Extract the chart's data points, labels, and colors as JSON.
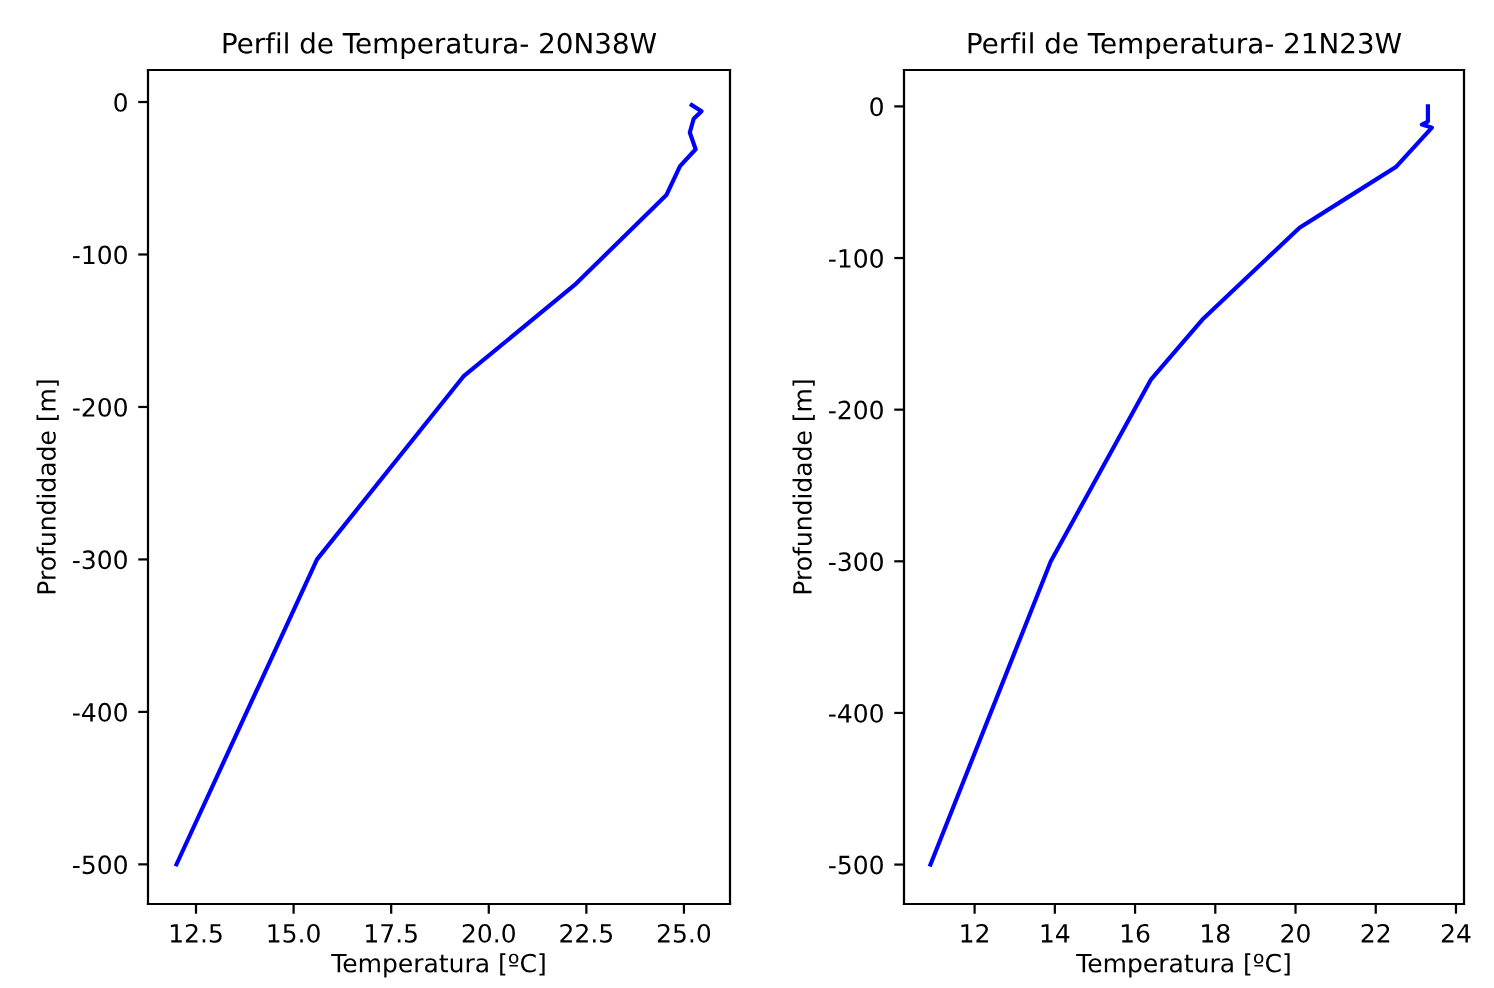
{
  "chart_data": [
    {
      "type": "line",
      "title": "Perfil de Temperatura- 20N38W",
      "xlabel": "Temperatura [ºC]",
      "ylabel": "Profundidade [m]",
      "xlim": [
        11.27,
        26.18
      ],
      "ylim": [
        -526,
        21
      ],
      "xticks": [
        {
          "value": 12.5,
          "label": "12.5"
        },
        {
          "value": 15,
          "label": "15.0"
        },
        {
          "value": 17.5,
          "label": "17.5"
        },
        {
          "value": 20,
          "label": "20.0"
        },
        {
          "value": 22.5,
          "label": "22.5"
        },
        {
          "value": 25,
          "label": "25.0"
        }
      ],
      "yticks": [
        0,
        -100,
        -200,
        -300,
        -400,
        -500
      ],
      "grid": false,
      "series": [
        {
          "color": "#0000ff",
          "x": [
            25.2,
            25.45,
            25.25,
            25.15,
            25.3,
            24.9,
            24.55,
            22.2,
            19.35,
            15.6,
            12.0
          ],
          "values": [
            -2,
            -6,
            -11,
            -20,
            -31,
            -42,
            -61,
            -120,
            -180,
            -300,
            -500
          ]
        }
      ]
    },
    {
      "type": "line",
      "title": "Perfil de Temperatura- 21N23W",
      "xlabel": "Temperatura [ºC]",
      "ylabel": "Profundidade [m]",
      "xlim": [
        10.24,
        24.2
      ],
      "ylim": [
        -526,
        24
      ],
      "xticks": [
        12,
        14,
        16,
        18,
        20,
        22,
        24
      ],
      "yticks": [
        0,
        -100,
        -200,
        -300,
        -400,
        -500
      ],
      "grid": false,
      "series": [
        {
          "color": "#0000ff",
          "x": [
            23.3,
            23.3,
            23.15,
            23.4,
            22.5,
            21.3,
            20.1,
            17.7,
            16.4,
            13.9,
            10.9
          ],
          "values": [
            0,
            -10,
            -12,
            -14,
            -40,
            -60,
            -80,
            -140,
            -180,
            -300,
            -500
          ]
        }
      ]
    }
  ]
}
